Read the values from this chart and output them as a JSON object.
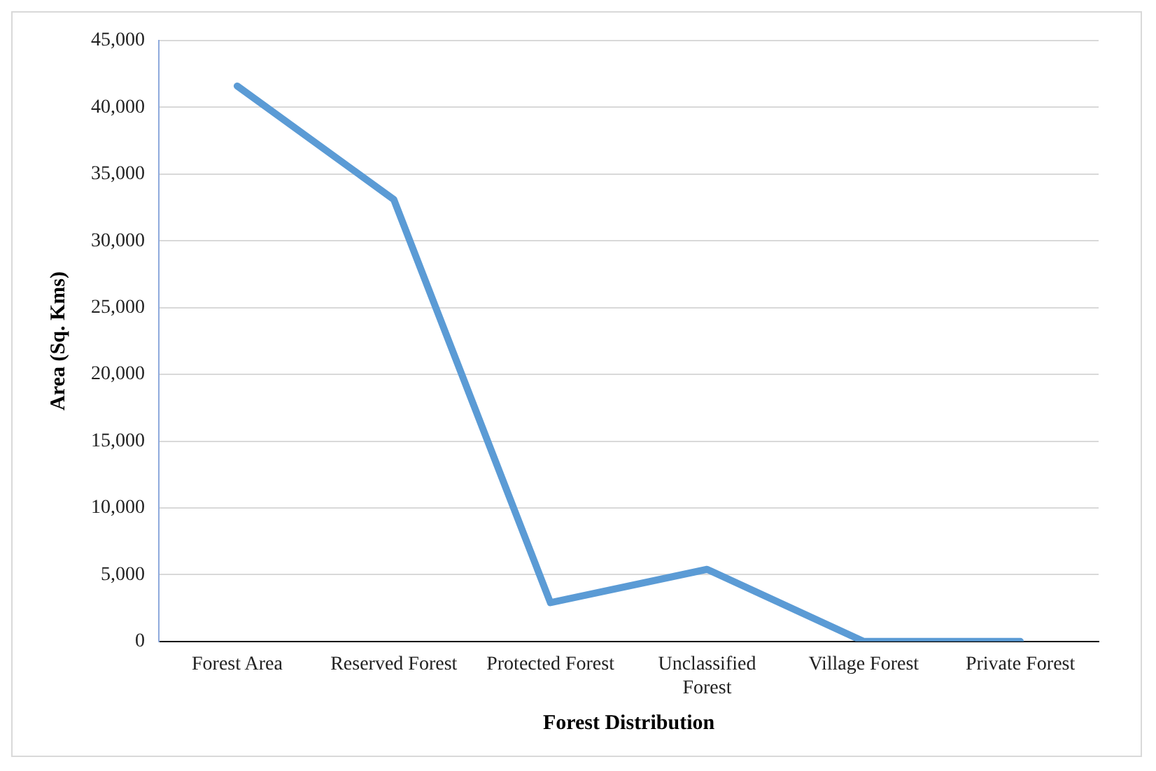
{
  "chart_data": {
    "type": "line",
    "xlabel": "Forest Distribution",
    "ylabel": "Area (Sq. Kms)",
    "categories": [
      "Forest Area",
      "Reserved Forest",
      "Protected Forest",
      "Unclassified Forest",
      "Village Forest",
      "Private Forest"
    ],
    "series": [
      {
        "color": "#5b9bd5",
        "values": [
          41600,
          33100,
          2900,
          5400,
          0,
          0
        ]
      }
    ],
    "ylim": [
      0,
      45000
    ],
    "yticks": [
      0,
      {
        "value": 5000,
        "label": "5,000"
      },
      {
        "value": 10000,
        "label": "10,000"
      },
      {
        "value": 15000,
        "label": "15,000"
      },
      {
        "value": 20000,
        "label": "20,000"
      },
      {
        "value": 25000,
        "label": "25,000"
      },
      {
        "value": 30000,
        "label": "30,000"
      },
      {
        "value": 35000,
        "label": "35,000"
      },
      {
        "value": 40000,
        "label": "40,000"
      },
      {
        "value": 45000,
        "label": "45,000"
      }
    ],
    "grid": "y",
    "legend": false,
    "marker": "none",
    "line_style": "solid"
  }
}
